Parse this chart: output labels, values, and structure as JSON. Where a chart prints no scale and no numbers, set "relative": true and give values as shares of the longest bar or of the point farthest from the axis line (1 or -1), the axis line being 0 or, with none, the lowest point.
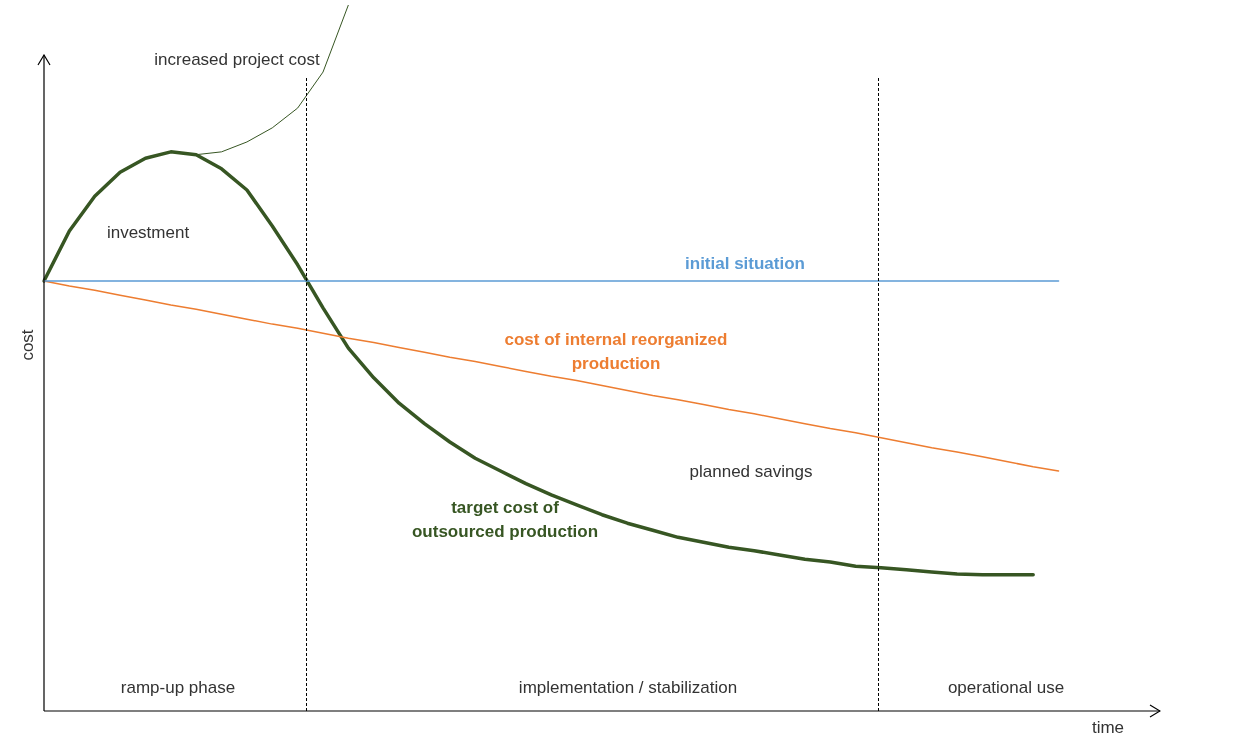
{
  "chart_data": {
    "type": "line",
    "relative": true,
    "xlabel": "time",
    "ylabel": "cost",
    "categories": [
      null,
      null,
      null,
      null,
      null,
      null,
      null,
      null,
      null,
      null,
      null,
      null,
      null,
      null,
      null,
      null,
      null,
      null,
      null,
      null,
      null,
      null,
      null,
      null,
      null,
      null,
      null,
      null,
      null,
      null,
      null,
      null,
      null,
      null,
      null,
      null,
      null,
      null,
      null,
      null,
      null,
      null,
      null,
      null,
      null
    ],
    "series": [
      {
        "name": "initial situation",
        "color": "#5b9bd5",
        "values": [
          0.609,
          0.609,
          0.609,
          0.609,
          0.609,
          0.609,
          0.609,
          0.609,
          0.609,
          0.609,
          0.609,
          0.609,
          0.609,
          0.609,
          0.609,
          0.609,
          0.609,
          0.609,
          0.609,
          0.609,
          0.609,
          0.609,
          0.609,
          0.609,
          0.609,
          0.609,
          0.609,
          0.609,
          0.609,
          0.609,
          0.609,
          0.609,
          0.609,
          0.609,
          0.609,
          0.609,
          0.609,
          0.609,
          0.609,
          0.609,
          0.609,
          null,
          null,
          null,
          null
        ]
      },
      {
        "name": "cost of internal reorganized production",
        "color": "#ed7d31",
        "values": [
          0.609,
          0.602,
          0.596,
          0.589,
          0.582,
          0.575,
          0.569,
          0.562,
          0.555,
          0.548,
          0.542,
          0.535,
          0.528,
          0.522,
          0.515,
          0.508,
          0.501,
          0.495,
          0.488,
          0.481,
          0.474,
          0.468,
          0.461,
          0.454,
          0.447,
          0.441,
          0.434,
          0.427,
          0.421,
          0.414,
          0.407,
          0.4,
          0.394,
          0.387,
          0.38,
          0.373,
          0.367,
          0.36,
          0.353,
          0.346,
          0.34,
          null,
          null,
          null,
          null
        ]
      },
      {
        "name": "target cost of outsourced production",
        "color": "#375623",
        "values": [
          0.609,
          0.68,
          0.729,
          0.763,
          0.783,
          0.792,
          0.788,
          0.768,
          0.738,
          0.687,
          0.632,
          0.571,
          0.514,
          0.472,
          0.436,
          0.407,
          0.381,
          0.358,
          0.34,
          0.322,
          0.306,
          0.292,
          0.278,
          0.266,
          0.256,
          0.246,
          0.239,
          0.232,
          0.227,
          0.221,
          0.215,
          0.211,
          0.205,
          0.203,
          0.2,
          0.197,
          0.194,
          0.193,
          0.193,
          0.193,
          null,
          null,
          null,
          null,
          null
        ]
      },
      {
        "color": "#375623",
        "values": [
          null,
          null,
          null,
          null,
          null,
          null,
          0.788,
          0.792,
          0.806,
          0.826,
          0.854,
          0.905,
          1.0,
          null,
          null,
          null,
          null,
          null,
          null,
          null,
          null,
          null,
          null,
          null,
          null,
          null,
          null,
          null,
          null,
          null,
          null,
          null,
          null,
          null,
          null,
          null,
          null,
          null,
          null,
          null,
          null,
          null,
          null,
          null,
          null
        ]
      }
    ],
    "annotations": [
      "increased project cost",
      "investment",
      "planned savings",
      "ramp-up phase",
      "implementation / stabilization",
      "operational use"
    ]
  }
}
